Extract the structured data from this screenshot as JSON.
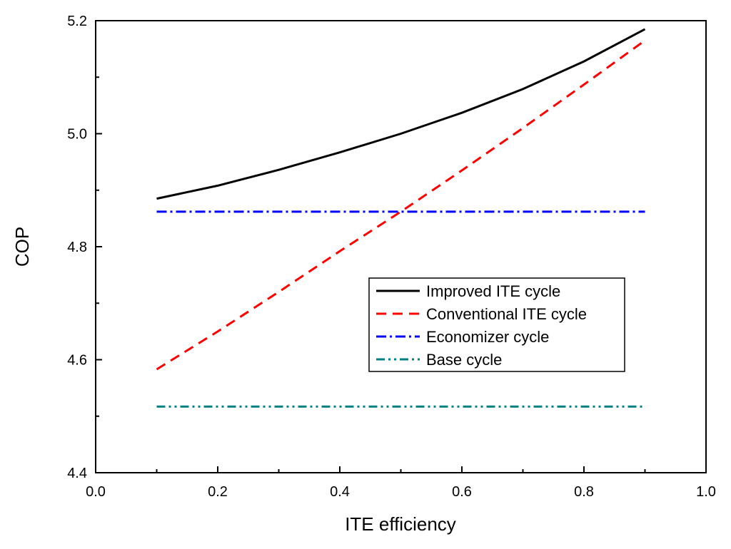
{
  "chart_data": {
    "type": "line",
    "title": "",
    "xlabel": "ITE efficiency",
    "ylabel": "COP",
    "xlim": [
      0.0,
      1.0
    ],
    "ylim": [
      4.4,
      5.2
    ],
    "xticks": [
      "0.0",
      "0.2",
      "0.4",
      "0.6",
      "0.8",
      "1.0"
    ],
    "yticks": [
      "4.4",
      "4.6",
      "4.8",
      "5.0",
      "5.2"
    ],
    "grid": false,
    "legend_position": "center-right",
    "x": [
      0.1,
      0.2,
      0.3,
      0.4,
      0.5,
      0.6,
      0.7,
      0.8,
      0.9
    ],
    "series": [
      {
        "name": "Improved ITE cycle",
        "color": "#000000",
        "dash": "solid",
        "values": [
          4.885,
          4.908,
          4.936,
          4.967,
          5.0,
          5.037,
          5.079,
          5.128,
          5.185
        ]
      },
      {
        "name": "Conventional ITE cycle",
        "color": "#ff0000",
        "dash": "dash",
        "values": [
          4.583,
          4.65,
          4.72,
          4.792,
          4.862,
          4.935,
          5.01,
          5.087,
          5.165
        ]
      },
      {
        "name": "Economizer cycle",
        "color": "#0000ff",
        "dash": "dashdot",
        "values": [
          4.862,
          4.862,
          4.862,
          4.862,
          4.862,
          4.862,
          4.862,
          4.862,
          4.862
        ]
      },
      {
        "name": "Base cycle",
        "color": "#008080",
        "dash": "dashdotdot",
        "values": [
          4.517,
          4.517,
          4.517,
          4.517,
          4.517,
          4.517,
          4.517,
          4.517,
          4.517
        ]
      }
    ]
  }
}
